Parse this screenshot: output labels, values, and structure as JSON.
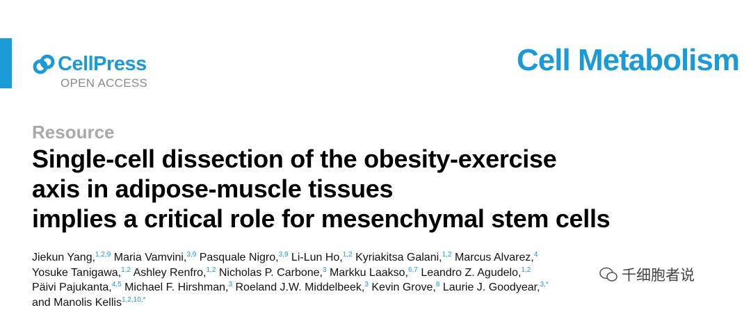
{
  "header": {
    "publisher": "CellPress",
    "access": "OPEN ACCESS",
    "journal": "Cell Metabolism"
  },
  "article": {
    "type": "Resource",
    "title_lines": [
      "Single-cell dissection of the obesity-exercise",
      "axis in adipose-muscle tissues",
      "implies a critical role for mesenchymal stem cells"
    ],
    "author_lines": [
      [
        {
          "name": "Jiekun Yang,",
          "sup": "1,2,9"
        },
        {
          "name": "Maria Vamvini,",
          "sup": "3,9"
        },
        {
          "name": "Pasquale Nigro,",
          "sup": "3,9"
        },
        {
          "name": "Li-Lun Ho,",
          "sup": "1,2"
        },
        {
          "name": "Kyriakitsa Galani,",
          "sup": "1,2"
        },
        {
          "name": "Marcus Alvarez,",
          "sup": "4"
        }
      ],
      [
        {
          "name": "Yosuke Tanigawa,",
          "sup": "1,2"
        },
        {
          "name": "Ashley Renfro,",
          "sup": "1,2"
        },
        {
          "name": "Nicholas P. Carbone,",
          "sup": "3"
        },
        {
          "name": "Markku Laakso,",
          "sup": "6,7"
        },
        {
          "name": "Leandro Z. Agudelo,",
          "sup": "1,2"
        }
      ],
      [
        {
          "name": "Päivi Pajukanta,",
          "sup": "4,5"
        },
        {
          "name": "Michael F. Hirshman,",
          "sup": "3"
        },
        {
          "name": "Roeland J.W. Middelbeek,",
          "sup": "3"
        },
        {
          "name": "Kevin Grove,",
          "sup": "8"
        },
        {
          "name": "Laurie J. Goodyear,",
          "sup": "3,*"
        }
      ],
      [
        {
          "name": "and Manolis Kellis",
          "sup": "1,2,10,*"
        }
      ]
    ]
  },
  "watermark": "千细胞者说"
}
